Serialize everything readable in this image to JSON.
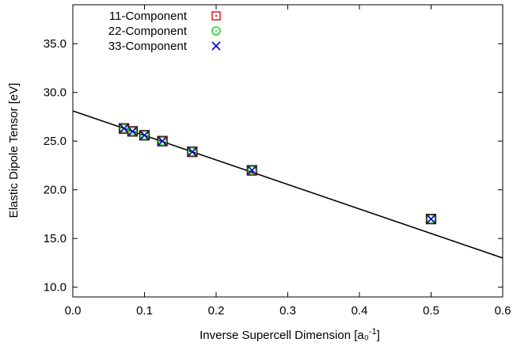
{
  "chart_data": {
    "type": "scatter",
    "xlabel": "Inverse Supercell Dimension [a₀",
    "xlabel_sup": "-1",
    "xlabel_end": "]",
    "ylabel": "Elastic Dipole Tensor [eV]",
    "xlim": [
      0,
      0.6
    ],
    "ylim": [
      9,
      39
    ],
    "xticks": [
      0,
      0.1,
      0.2,
      0.3,
      0.4,
      0.5,
      0.6
    ],
    "xtick_labels": [
      "0.0",
      "0.1",
      "0.2",
      "0.3",
      "0.4",
      "0.5",
      "0.6"
    ],
    "yticks": [
      10,
      15,
      20,
      25,
      30,
      35
    ],
    "ytick_labels": [
      "10.0",
      "15.0",
      "20.0",
      "25.0",
      "30.0",
      "35.0"
    ],
    "grid": false,
    "legend_position": "top-left",
    "series": [
      {
        "name": "11-Component",
        "marker": "square",
        "color": "#e41a1c",
        "x": [
          0.5,
          0.25,
          0.1667,
          0.125,
          0.1,
          0.0833,
          0.0714
        ],
        "y": [
          17.0,
          22.0,
          23.9,
          25.0,
          25.6,
          26.0,
          26.3
        ]
      },
      {
        "name": "22-Component",
        "marker": "circle",
        "color": "#22cc22",
        "x": [
          0.5,
          0.25,
          0.1667,
          0.125,
          0.1,
          0.0833,
          0.0714
        ],
        "y": [
          17.0,
          22.0,
          23.9,
          25.0,
          25.6,
          26.0,
          26.3
        ]
      },
      {
        "name": "33-Component",
        "marker": "x",
        "color": "#0000dd",
        "x": [
          0.5,
          0.25,
          0.1667,
          0.125,
          0.1,
          0.0833,
          0.0714
        ],
        "y": [
          17.0,
          22.0,
          23.9,
          25.0,
          25.6,
          26.0,
          26.3
        ]
      }
    ],
    "fit_lines": [
      {
        "color": "#e41a1c",
        "x": [
          0,
          0.6
        ],
        "y": [
          28.1,
          13.0
        ]
      },
      {
        "color": "#22cc22",
        "x": [
          0,
          0.6
        ],
        "y": [
          28.1,
          13.0
        ]
      },
      {
        "color": "#0000dd",
        "x": [
          0,
          0.6
        ],
        "y": [
          28.1,
          13.0
        ]
      },
      {
        "color": "#000000",
        "x": [
          0,
          0.6
        ],
        "y": [
          28.1,
          13.0
        ]
      }
    ]
  }
}
